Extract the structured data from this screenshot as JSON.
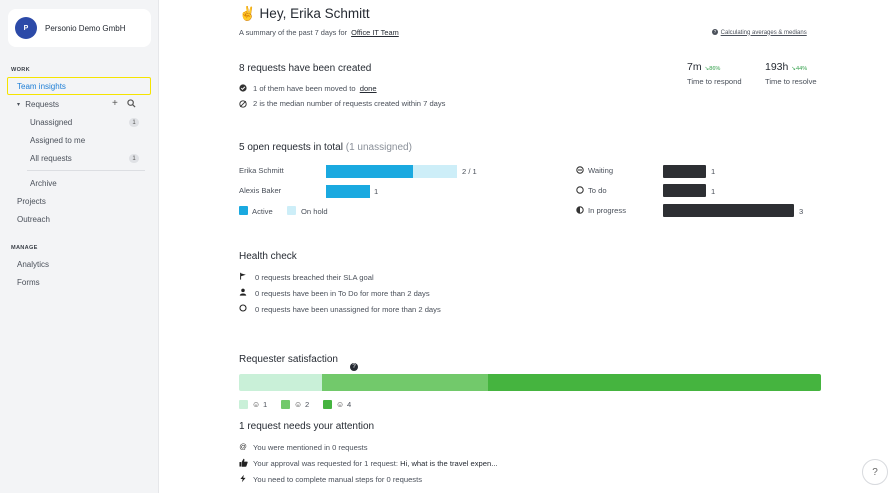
{
  "sidebar": {
    "org_initial": "P",
    "org_name": "Personio Demo GmbH",
    "work_label": "WORK",
    "team_insights": "Team insights",
    "requests": "Requests",
    "unassigned": "Unassigned",
    "unassigned_count": "1",
    "assigned_to_me": "Assigned to me",
    "all_requests": "All requests",
    "all_requests_count": "1",
    "archive": "Archive",
    "projects": "Projects",
    "outreach": "Outreach",
    "manage_label": "MANAGE",
    "analytics": "Analytics",
    "forms": "Forms"
  },
  "header": {
    "greeting": "✌ Hey, Erika Schmitt",
    "summary_prefix": "A summary of the past 7 days for",
    "team": "Office IT Team",
    "calc_link": "Calculating averages & medians"
  },
  "created": {
    "title": "8 requests have been created",
    "moved_prefix": "1 of them have been moved to",
    "moved_link": "done",
    "median": "2 is the median number of requests created within 7 days"
  },
  "metrics": {
    "respond_value": "7m",
    "respond_change": "↘86%",
    "respond_label": "Time to respond",
    "resolve_value": "193h",
    "resolve_change": "↘44%",
    "resolve_label": "Time to resolve"
  },
  "open": {
    "title": "5 open requests in total",
    "unassigned": "(1 unassigned)",
    "people": [
      {
        "name": "Erika Schmitt",
        "count": "2 / 1",
        "active": 2,
        "on_hold": 1
      },
      {
        "name": "Alexis Baker",
        "count": "1",
        "active": 1,
        "on_hold": 0
      }
    ],
    "legend_active": "Active",
    "legend_on_hold": "On hold",
    "statuses": [
      {
        "label": "Waiting",
        "count": "1",
        "value": 1
      },
      {
        "label": "To do",
        "count": "1",
        "value": 1
      },
      {
        "label": "In progress",
        "count": "3",
        "value": 3
      }
    ]
  },
  "health": {
    "title": "Health check",
    "items": [
      "0 requests breached their SLA goal",
      "0 requests have been in To Do for more than 2 days",
      "0 requests have been unassigned for more than 2 days"
    ]
  },
  "satisfaction": {
    "title": "Requester satisfaction",
    "segments": [
      {
        "label": "1",
        "value": 1,
        "color": "#c9f0d8"
      },
      {
        "label": "2",
        "value": 2,
        "color": "#72c96b"
      },
      {
        "label": "4",
        "value": 4,
        "color": "#45b43f"
      }
    ]
  },
  "attention": {
    "title": "1 request needs your attention",
    "mentioned": "You were mentioned in 0 requests",
    "approval_prefix": "Your approval was requested for 1 request:",
    "approval_subject": "Hi, what is the travel expen...",
    "manual": "You need to complete manual steps for 0 requests"
  },
  "colors": {
    "active": "#1aa9e0",
    "on_hold": "#cdeef8",
    "highlight": "#f5e400"
  }
}
